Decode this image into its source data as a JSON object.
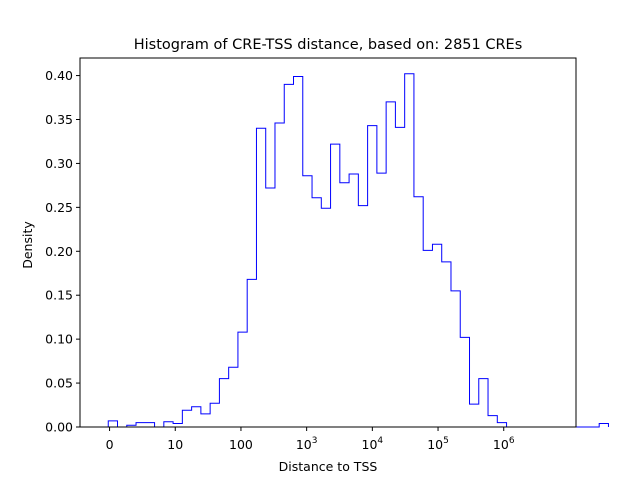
{
  "chart_data": {
    "type": "histogram",
    "title": "Histogram of CRE-TSS distance, based on: 2851 CREs",
    "xlabel": "Distance to TSS",
    "ylabel": "Density",
    "x_scale": "symlog",
    "xlim_axis_units": [
      -0.45,
      7.1
    ],
    "ylim": [
      0,
      0.42
    ],
    "x_ticks": [
      {
        "value": 0,
        "label": "0",
        "sup": ""
      },
      {
        "value": 1,
        "label": "10",
        "sup": ""
      },
      {
        "value": 2,
        "label": "100",
        "sup": ""
      },
      {
        "value": 3,
        "label": "10",
        "sup": "3"
      },
      {
        "value": 4,
        "label": "10",
        "sup": "4"
      },
      {
        "value": 5,
        "label": "10",
        "sup": "5"
      },
      {
        "value": 6,
        "label": "10",
        "sup": "6"
      }
    ],
    "y_ticks": [
      {
        "value": 0.0,
        "label": "0.00"
      },
      {
        "value": 0.05,
        "label": "0.05"
      },
      {
        "value": 0.1,
        "label": "0.10"
      },
      {
        "value": 0.15,
        "label": "0.15"
      },
      {
        "value": 0.2,
        "label": "0.20"
      },
      {
        "value": 0.25,
        "label": "0.25"
      },
      {
        "value": 0.3,
        "label": "0.30"
      },
      {
        "value": 0.35,
        "label": "0.35"
      },
      {
        "value": 0.4,
        "label": "0.40"
      }
    ],
    "bin_width_axis_units": 0.141,
    "bin_start_axis_units": -0.02,
    "densities": [
      0.007,
      0.0,
      0.002,
      0.005,
      0.005,
      0.0,
      0.006,
      0.004,
      0.019,
      0.023,
      0.015,
      0.027,
      0.055,
      0.068,
      0.108,
      0.168,
      0.34,
      0.272,
      0.346,
      0.39,
      0.399,
      0.286,
      0.261,
      0.249,
      0.322,
      0.278,
      0.288,
      0.252,
      0.343,
      0.289,
      0.37,
      0.341,
      0.402,
      0.262,
      0.201,
      0.208,
      0.188,
      0.155,
      0.102,
      0.026,
      0.055,
      0.013,
      0.005,
      0.0,
      0.0,
      0.0,
      0.0,
      0.0,
      0.0,
      0.0,
      0.0,
      0.0,
      0.0,
      0.004
    ],
    "grid": false,
    "series_color": "#0000ff"
  }
}
